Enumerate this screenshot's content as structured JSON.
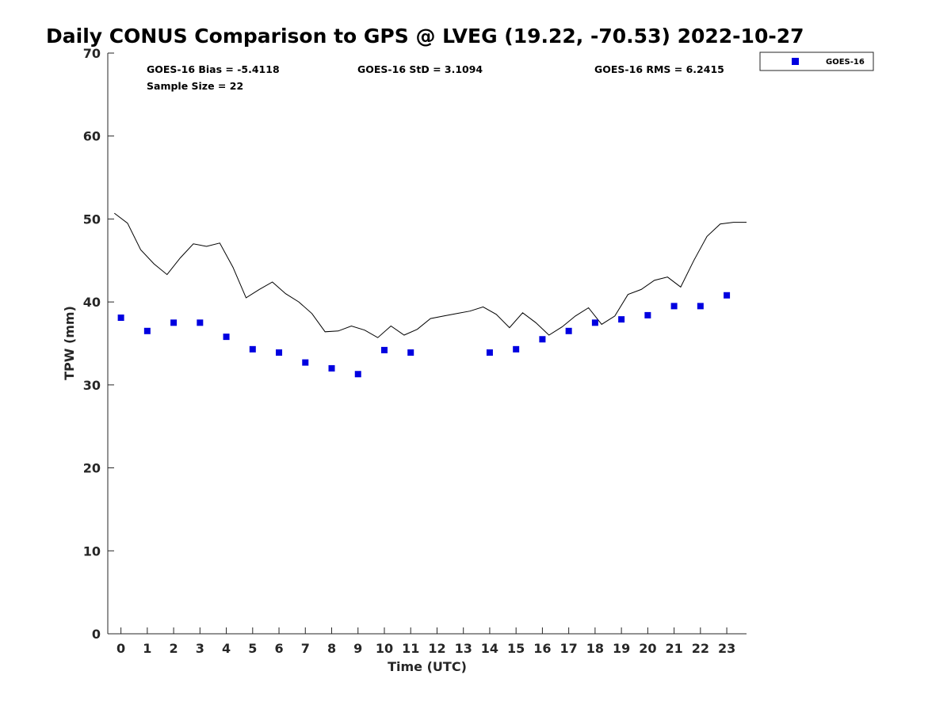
{
  "chart_data": {
    "type": "scatter",
    "title": "Daily CONUS Comparison to GPS @ LVEG (19.22, -70.53) 2022-10-27",
    "xlabel": "Time (UTC)",
    "ylabel": "TPW (mm)",
    "xlim": [
      -0.5,
      23.75
    ],
    "ylim": [
      0,
      70
    ],
    "xticks": [
      0,
      1,
      2,
      3,
      4,
      5,
      6,
      7,
      8,
      9,
      10,
      11,
      12,
      13,
      14,
      15,
      16,
      17,
      18,
      19,
      20,
      21,
      22,
      23
    ],
    "yticks": [
      0,
      10,
      20,
      30,
      40,
      50,
      60,
      70
    ],
    "grid": false,
    "legend_position": "outside-top-right",
    "stats": {
      "bias": "GOES-16 Bias = -5.4118",
      "std": "GOES-16 StD = 3.1094",
      "rms": "GOES-16 RMS = 6.2415",
      "sample_size": "Sample Size = 22"
    },
    "series": [
      {
        "name": "GOES-16",
        "kind": "scatter",
        "marker": "square",
        "color": "#0000e0",
        "x": [
          0,
          1,
          2,
          3,
          4,
          5,
          6,
          7,
          8,
          9,
          10,
          11,
          14,
          15,
          16,
          17,
          18,
          19,
          20,
          21,
          22,
          23
        ],
        "y": [
          38.1,
          36.5,
          37.5,
          37.5,
          35.8,
          34.3,
          33.9,
          32.7,
          32.0,
          31.3,
          34.2,
          33.9,
          33.9,
          34.3,
          35.5,
          36.5,
          37.5,
          37.9,
          38.4,
          39.5,
          39.5,
          40.8
        ]
      },
      {
        "kind": "line",
        "color": "#000000",
        "x": [
          -0.25,
          0.25,
          0.75,
          1.25,
          1.75,
          2.25,
          2.75,
          3.25,
          3.75,
          4.25,
          4.75,
          5.25,
          5.75,
          6.25,
          6.75,
          7.25,
          7.75,
          8.25,
          8.75,
          9.25,
          9.75,
          10.25,
          10.75,
          11.25,
          11.75,
          12.25,
          12.75,
          13.25,
          13.75,
          14.25,
          14.75,
          15.25,
          15.75,
          16.25,
          16.75,
          17.25,
          17.75,
          18.25,
          18.75,
          19.25,
          19.75,
          20.25,
          20.75,
          21.25,
          21.75,
          22.25,
          22.75,
          23.25,
          23.75
        ],
        "y": [
          50.7,
          49.5,
          46.3,
          44.6,
          43.3,
          45.3,
          47.0,
          46.7,
          47.1,
          44.2,
          40.5,
          41.5,
          42.4,
          41.0,
          40.0,
          38.6,
          36.4,
          36.5,
          37.1,
          36.6,
          35.7,
          37.1,
          36.0,
          36.7,
          38.0,
          38.3,
          38.6,
          38.9,
          39.4,
          38.5,
          36.9,
          38.7,
          37.5,
          36.0,
          37.0,
          38.3,
          39.3,
          37.3,
          38.3,
          40.9,
          41.5,
          42.6,
          43.0,
          41.8,
          45.0,
          47.9,
          49.4,
          49.6,
          49.6
        ]
      }
    ]
  }
}
